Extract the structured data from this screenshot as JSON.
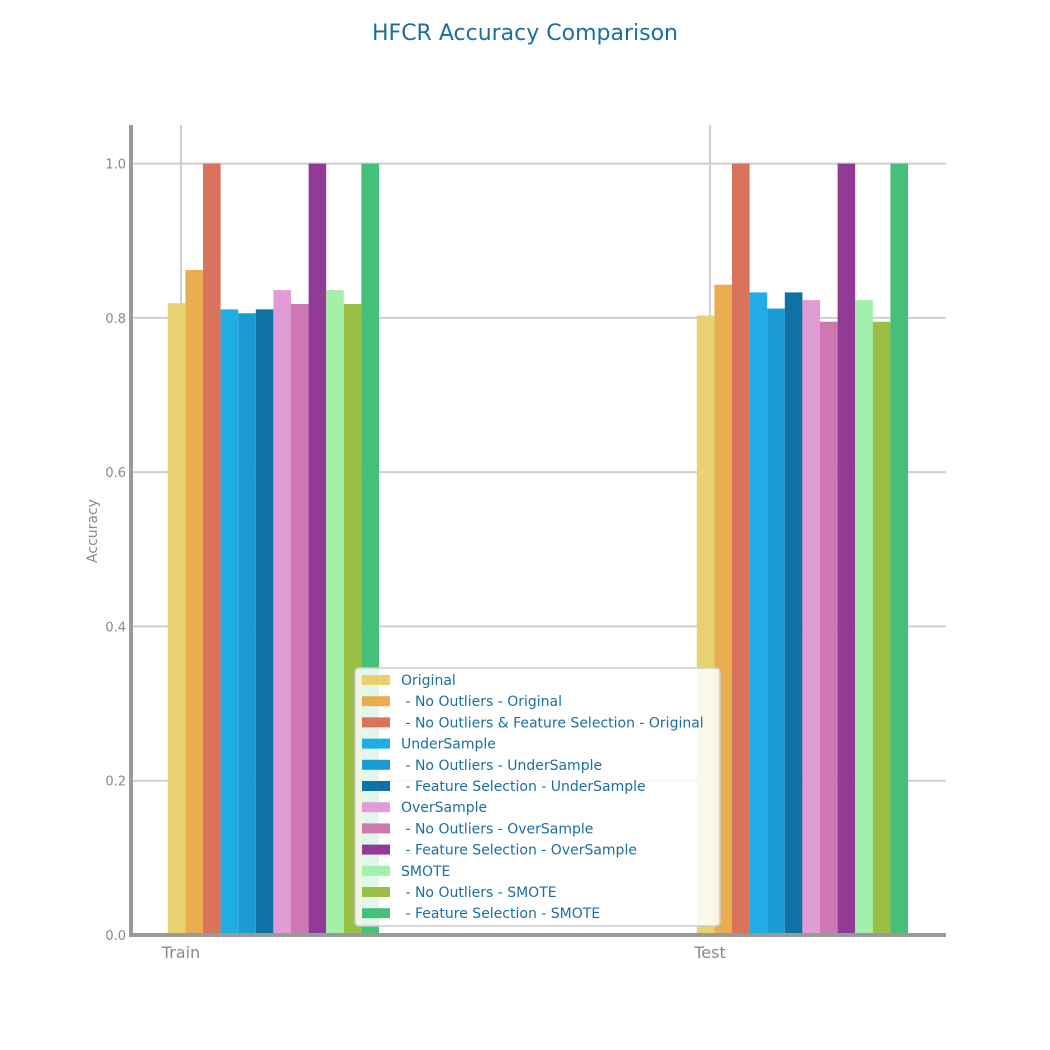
{
  "chart_data": {
    "type": "bar",
    "title": "HFCR Accuracy Comparison",
    "xlabel": "",
    "ylabel": "Accuracy",
    "categories": [
      "Train",
      "Test"
    ],
    "ylim": [
      0,
      1.05
    ],
    "yticks": [
      "0.0",
      "0.2",
      "0.4",
      "0.6",
      "0.8",
      "1.0"
    ],
    "grid": true,
    "legend_position": "bottom-center",
    "series": [
      {
        "name": "Original",
        "color": "#e8d170",
        "values": [
          0.819,
          0.803
        ]
      },
      {
        "name": " - No Outliers - Original",
        "color": "#e8ad4f",
        "values": [
          0.862,
          0.843
        ]
      },
      {
        "name": " - No Outliers & Feature Selection - Original",
        "color": "#d9735b",
        "values": [
          1.0,
          1.0
        ]
      },
      {
        "name": "UnderSample",
        "color": "#22ace6",
        "values": [
          0.811,
          0.833
        ]
      },
      {
        "name": " - No Outliers - UnderSample",
        "color": "#1a9bd6",
        "values": [
          0.806,
          0.812
        ]
      },
      {
        "name": " - Feature Selection - UnderSample",
        "color": "#0f71a6",
        "values": [
          0.811,
          0.833
        ]
      },
      {
        "name": "OverSample",
        "color": "#e19bd6",
        "values": [
          0.836,
          0.823
        ]
      },
      {
        "name": " - No Outliers - OverSample",
        "color": "#cf77b0",
        "values": [
          0.818,
          0.795
        ]
      },
      {
        "name": " - Feature Selection - OverSample",
        "color": "#913b96",
        "values": [
          1.0,
          1.0
        ]
      },
      {
        "name": "SMOTE",
        "color": "#a3f0aa",
        "values": [
          0.836,
          0.823
        ]
      },
      {
        "name": " - No Outliers - SMOTE",
        "color": "#9bbf44",
        "values": [
          0.818,
          0.795
        ]
      },
      {
        "name": " - Feature Selection - SMOTE",
        "color": "#45bf79",
        "values": [
          1.0,
          1.0
        ]
      }
    ]
  }
}
